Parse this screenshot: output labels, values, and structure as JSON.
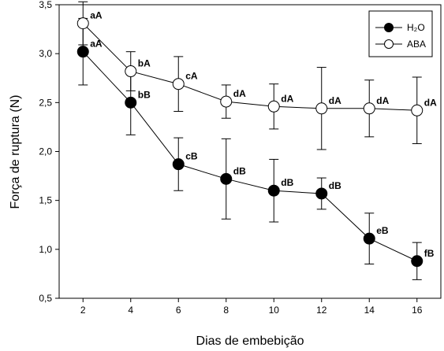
{
  "chart_data": {
    "type": "line",
    "title": "",
    "xlabel": "Dias de embebição",
    "ylabel": "Força de ruptura (N)",
    "x": [
      2,
      4,
      6,
      8,
      10,
      12,
      14,
      16
    ],
    "xlim": [
      1,
      17
    ],
    "ylim": [
      0.5,
      3.5
    ],
    "xticks": [
      2,
      4,
      6,
      8,
      10,
      12,
      14,
      16
    ],
    "yticks": [
      0.5,
      1.0,
      1.5,
      2.0,
      2.5,
      3.0,
      3.5
    ],
    "ytick_labels": [
      "0,5",
      "1,0",
      "1,5",
      "2,0",
      "2,5",
      "3,0",
      "3,5"
    ],
    "grid": false,
    "legend_position": "top-right",
    "series": [
      {
        "name": "H₂O",
        "marker": "filled-circle",
        "color": "#000000",
        "values": [
          3.02,
          2.5,
          1.87,
          1.72,
          1.6,
          1.57,
          1.11,
          0.88
        ],
        "error": [
          0.34,
          0.33,
          0.27,
          0.41,
          0.32,
          0.16,
          0.26,
          0.19
        ],
        "labels": [
          "aA",
          "bB",
          "cB",
          "dB",
          "dB",
          "dB",
          "eB",
          "fB"
        ]
      },
      {
        "name": "ABA",
        "marker": "open-circle",
        "color": "#000000",
        "values": [
          3.31,
          2.82,
          2.69,
          2.51,
          2.46,
          2.44,
          2.44,
          2.42
        ],
        "error": [
          0.22,
          0.2,
          0.28,
          0.17,
          0.23,
          0.42,
          0.29,
          0.34
        ],
        "labels": [
          "aA",
          "bA",
          "cA",
          "dA",
          "dA",
          "dA",
          "dA",
          "dA"
        ]
      }
    ]
  }
}
